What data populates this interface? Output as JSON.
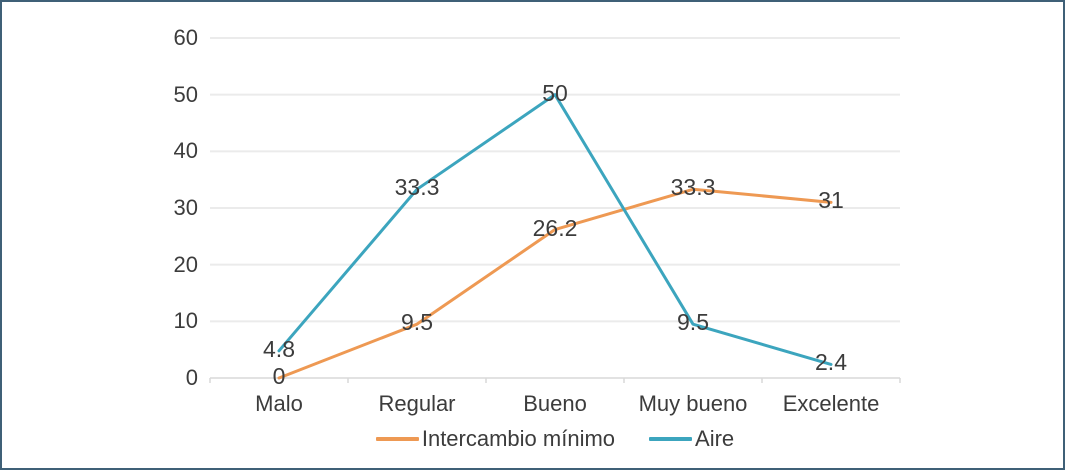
{
  "colors": {
    "frame_border": "#3f6077",
    "gridline": "#ebebeb",
    "axis_line": "#d9d9d9",
    "text": "#3c3c3c"
  },
  "chart_data": {
    "type": "line",
    "title": "",
    "xlabel": "",
    "ylabel": "",
    "categories": [
      "Malo",
      "Regular",
      "Bueno",
      "Muy bueno",
      "Excelente"
    ],
    "series": [
      {
        "name": "Intercambio mínimo",
        "color": "#ee9953",
        "values": [
          0,
          9.5,
          26.2,
          33.3,
          31
        ]
      },
      {
        "name": "Aire",
        "color": "#3ca5be",
        "values": [
          4.8,
          33.3,
          50,
          9.5,
          2.4
        ]
      }
    ],
    "ylim": [
      0,
      60
    ],
    "yticks": [
      0,
      10,
      20,
      30,
      40,
      50,
      60
    ],
    "grid": true,
    "legend_position": "bottom",
    "data_label_position": "center"
  }
}
